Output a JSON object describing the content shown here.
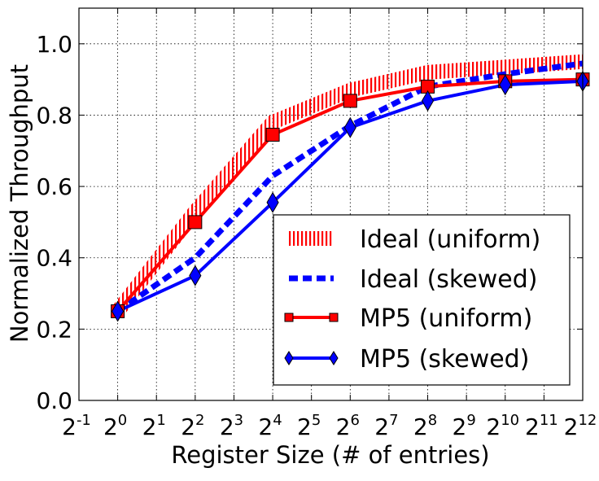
{
  "chart_data": {
    "type": "line",
    "title": "",
    "xlabel": "Register Size (# of entries)",
    "ylabel": "Normalized Throughput",
    "x_scale": "log2",
    "x_tick_base": "2",
    "x_tick_exponents": [
      -1,
      0,
      1,
      2,
      3,
      4,
      5,
      6,
      7,
      8,
      9,
      10,
      11,
      12
    ],
    "xlim": [
      0.5,
      4096
    ],
    "ylim": [
      0.0,
      1.1
    ],
    "y_ticks": [
      "0.0",
      "0.2",
      "0.4",
      "0.6",
      "0.8",
      "1.0"
    ],
    "y_tick_values": [
      0.0,
      0.2,
      0.4,
      0.6,
      0.8,
      1.0
    ],
    "grid": true,
    "legend_position": "lower-right",
    "x": [
      1,
      4,
      16,
      64,
      256,
      1024,
      4096
    ],
    "series": [
      {
        "name": "Ideal (uniform)",
        "color": "#ff0000",
        "style": "hatched-band",
        "values": [
          0.25,
          0.53,
          0.78,
          0.87,
          0.92,
          0.935,
          0.95
        ]
      },
      {
        "name": "Ideal (skewed)",
        "color": "#0000ff",
        "style": "dashed",
        "values": [
          0.25,
          0.4,
          0.63,
          0.77,
          0.88,
          0.915,
          0.945
        ]
      },
      {
        "name": "MP5 (uniform)",
        "color": "#ff0000",
        "style": "solid",
        "marker": "square",
        "values": [
          0.25,
          0.5,
          0.745,
          0.84,
          0.88,
          0.895,
          0.9
        ]
      },
      {
        "name": "MP5 (skewed)",
        "color": "#0000ff",
        "style": "solid",
        "marker": "diamond",
        "values": [
          0.25,
          0.35,
          0.555,
          0.765,
          0.84,
          0.885,
          0.895
        ]
      }
    ]
  }
}
